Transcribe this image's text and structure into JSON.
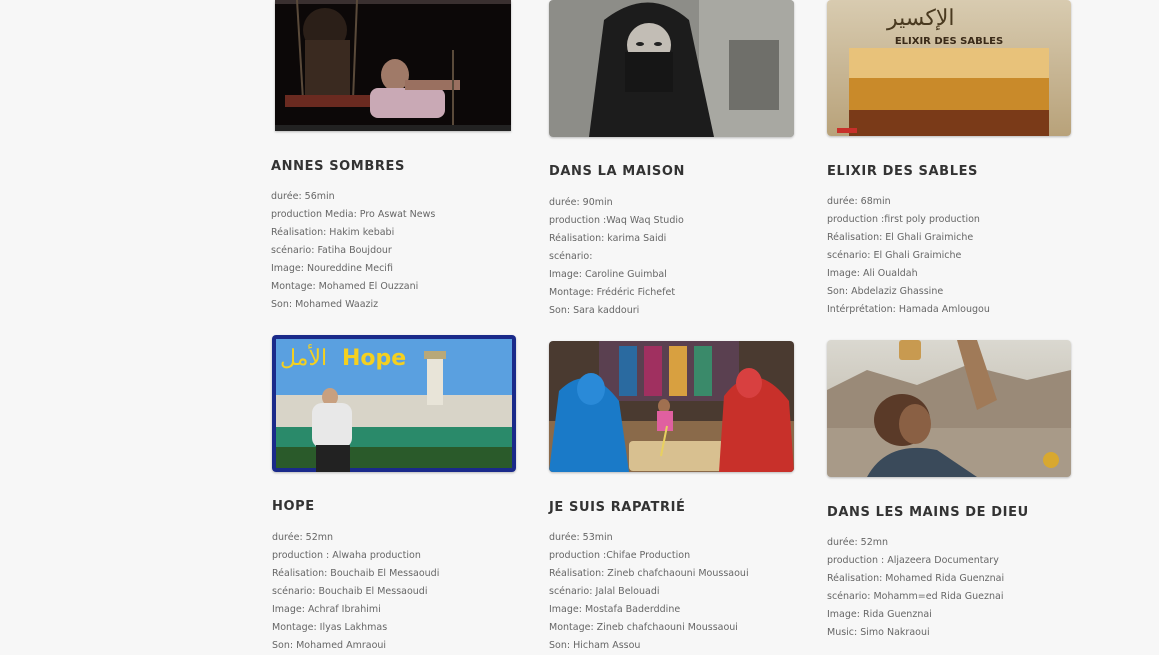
{
  "films": [
    {
      "title": "ANNES SOMBRES",
      "details": [
        "durée: 56min",
        "production Media: Pro Aswat News",
        "Réalisation: Hakim kebabi",
        "scénario: Fatiha Boujdour",
        "Image: Noureddine Mecifi",
        "Montage: Mohamed El Ouzzani",
        "Son: Mohamed Waaziz"
      ]
    },
    {
      "title": "DANS LA MAISON",
      "details": [
        "durée: 90min",
        "production :Waq Waq Studio",
        "Réalisation: karima Saidi",
        "scénario:",
        "Image: Caroline Guimbal",
        "Montage: Frédéric Fichefet",
        "Son: Sara kaddouri"
      ]
    },
    {
      "title": "ELIXIR DES SABLES",
      "poster_text": [
        "ELIXIR DES SABLES"
      ],
      "details": [
        "durée: 68min",
        "production :first poly production",
        "Réalisation: El Ghali Graimiche",
        "scénario: El Ghali Graimiche",
        "Image: Ali Oualdah",
        "Son: Abdelaziz Ghassine",
        "Intérprétation: Hamada Amlougou"
      ]
    },
    {
      "title": "HOPE",
      "poster_text": [
        "Hope"
      ],
      "details": [
        "durée: 52mn",
        "production : Alwaha production",
        "Réalisation: Bouchaib El Messaoudi",
        "scénario: Bouchaib El Messaoudi",
        "Image: Achraf Ibrahimi",
        "Montage: Ilyas Lakhmas",
        "Son: Mohamed Amraoui"
      ]
    },
    {
      "title": "JE SUIS RAPATRIÉ",
      "details": [
        "durée: 53min",
        "production :Chifae Production",
        "Réalisation: Zineb chafchaouni Moussaoui",
        "scénario: Jalal Belouadi",
        "Image: Mostafa Baderddine",
        "Montage: Zineb chafchaouni Moussaoui",
        "Son: Hicham Assou"
      ]
    },
    {
      "title": "DANS LES MAINS DE DIEU",
      "details": [
        "durée: 52mn",
        "production : Aljazeera Documentary",
        "Réalisation: Mohamed Rida Guenznai",
        "scénario: Mohamm=ed Rida Gueznai",
        "Image: Rida Guenznai",
        "Music: Simo Nakraoui"
      ]
    }
  ]
}
